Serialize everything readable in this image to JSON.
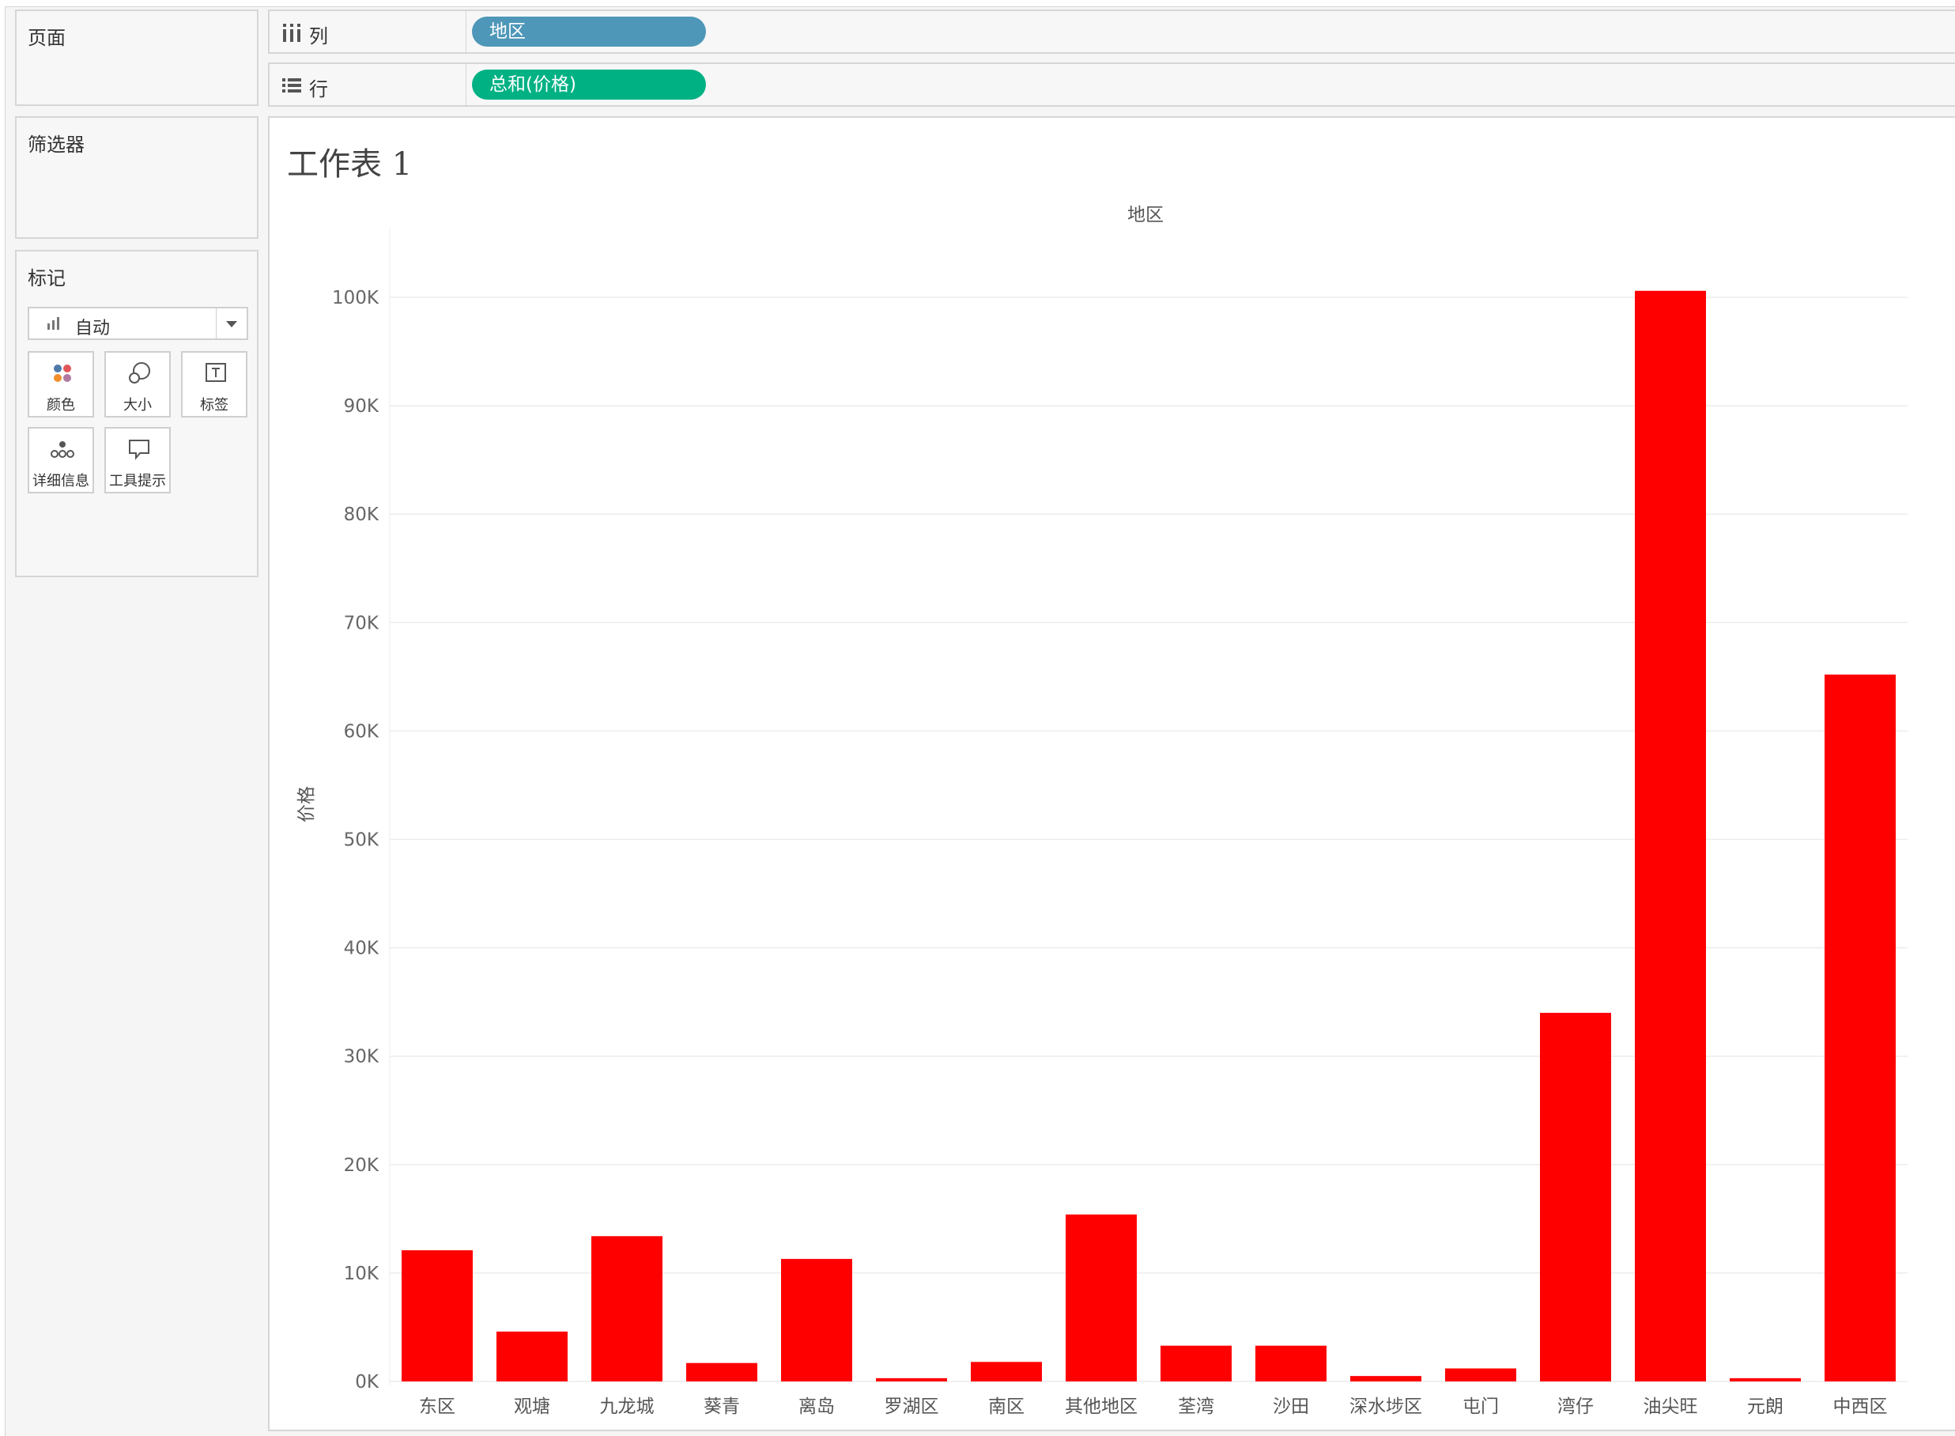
{
  "panels": {
    "pages_label": "页面",
    "filters_label": "筛选器",
    "marks_label": "标记"
  },
  "marks": {
    "type_label": "自动",
    "buttons": [
      {
        "label": "颜色",
        "icon": "color-dots-icon"
      },
      {
        "label": "大小",
        "icon": "size-circles-icon"
      },
      {
        "label": "标签",
        "icon": "text-label-icon"
      },
      {
        "label": "详细信息",
        "icon": "detail-dots-icon"
      },
      {
        "label": "工具提示",
        "icon": "tooltip-bubble-icon"
      }
    ]
  },
  "shelves": {
    "columns": {
      "label": "列",
      "pill": "地区",
      "pill_color": "#4e97b8"
    },
    "rows": {
      "label": "行",
      "pill": "总和(价格)",
      "pill_color": "#00b184"
    }
  },
  "sheet": {
    "title": "工作表 1"
  },
  "chart_data": {
    "type": "bar",
    "title": "",
    "xlabel": "地区",
    "ylabel": "价格",
    "categories": [
      "东区",
      "观塘",
      "九龙城",
      "葵青",
      "离岛",
      "罗湖区",
      "南区",
      "其他地区",
      "荃湾",
      "沙田",
      "深水埗区",
      "屯门",
      "湾仔",
      "油尖旺",
      "元朗",
      "中西区"
    ],
    "values": [
      12100,
      4600,
      13400,
      1700,
      11300,
      300,
      1800,
      15400,
      3300,
      3300,
      500,
      1200,
      34000,
      100600,
      300,
      65200
    ],
    "ylim": [
      0,
      100000
    ],
    "yticks": [
      0,
      10000,
      20000,
      30000,
      40000,
      50000,
      60000,
      70000,
      80000,
      90000,
      100000
    ],
    "ytick_labels": [
      "0K",
      "10K",
      "20K",
      "30K",
      "40K",
      "50K",
      "60K",
      "70K",
      "80K",
      "90K",
      "100K"
    ],
    "bar_color": "#ff0000",
    "grid": true
  }
}
